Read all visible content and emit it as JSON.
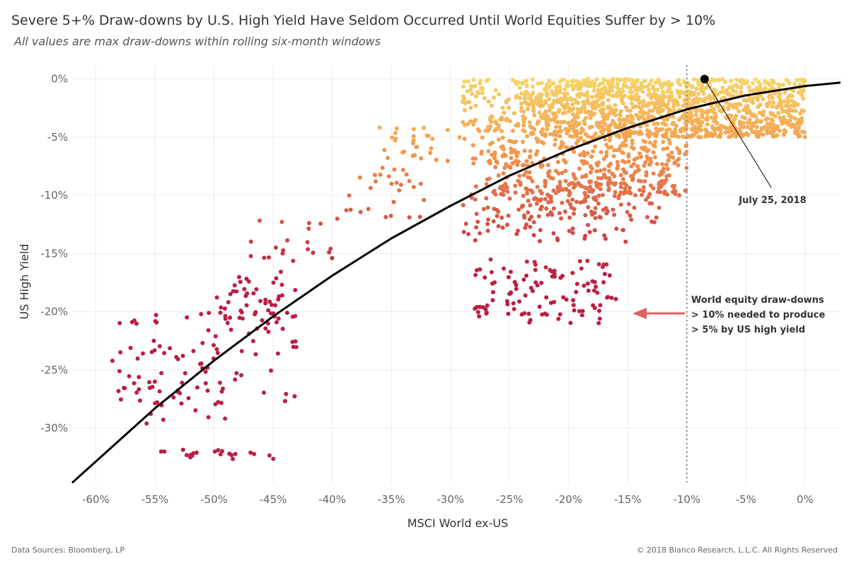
{
  "header": {
    "title": "Severe 5+% Draw-downs by U.S. High Yield Have Seldom Occurred Until World Equities Suffer by > 10%",
    "subtitle": "All values are max draw-downs within rolling six-month windows"
  },
  "footer": {
    "source": "Data Sources: Bloomberg, LP",
    "copyright": "© 2018 Bianco Research, L.L.C. All Rights Reserved"
  },
  "colors": {
    "high": "#f6d56a",
    "mid": "#f59a4c",
    "low": "#bb1e42",
    "fit_line": "#000000",
    "arrow": "#e06060",
    "marker": "#000000"
  },
  "chart_data": {
    "type": "scatter",
    "title": "Severe 5+% Draw-downs by U.S. High Yield Have Seldom Occurred Until World Equities Suffer by > 10%",
    "subtitle": "All values are max draw-downs within rolling six-month windows",
    "xlabel": "MSCI World ex-US",
    "ylabel": "US High Yield",
    "xlim": [
      -62,
      3
    ],
    "ylim": [
      -34.8,
      1.2
    ],
    "x_ticks": [
      -60,
      -55,
      -50,
      -45,
      -40,
      -35,
      -30,
      -25,
      -20,
      -15,
      -10,
      -5,
      0
    ],
    "x_tick_labels": [
      "-60%",
      "-55%",
      "-50%",
      "-45%",
      "-40%",
      "-35%",
      "-30%",
      "-25%",
      "-20%",
      "-15%",
      "-10%",
      "-5%",
      "0%"
    ],
    "y_ticks": [
      0,
      -5,
      -10,
      -15,
      -20,
      -25,
      -30
    ],
    "y_tick_labels": [
      "0%",
      "-5%",
      "-10%",
      "-15%",
      "-20%",
      "-25%",
      "-30%"
    ],
    "grid": true,
    "color_scale": "yellow (near 0%) to orange to dark red (US High Yield draw-down)",
    "fit_curve": {
      "type": "quadratic",
      "x": [
        -62,
        -55,
        -50,
        -45,
        -40,
        -35,
        -30,
        -25,
        -20,
        -15,
        -10,
        -5,
        0,
        3
      ],
      "y": [
        -34.7,
        -28.3,
        -24.2,
        -20.4,
        -16.9,
        -13.7,
        -10.9,
        -8.3,
        -6.1,
        -4.2,
        -2.6,
        -1.4,
        -0.6,
        -0.3
      ]
    },
    "reference_line": {
      "x": -10,
      "style": "dotted"
    },
    "marker": {
      "x": -8.5,
      "y": 0,
      "label": "July 25, 2018"
    },
    "annotation": {
      "lines": [
        "World equity draw-downs",
        "> 10% needed to produce",
        "> 5% by US high yield"
      ]
    },
    "clusters": [
      {
        "name": "near zero band",
        "x_range": [
          -24,
          0
        ],
        "y_range": [
          -5,
          0
        ],
        "count": 1300
      },
      {
        "name": "near zero band upper",
        "x_range": [
          -29,
          -24
        ],
        "y_range": [
          -4.5,
          0
        ],
        "count": 90
      },
      {
        "name": "moderate",
        "x_range": [
          -27,
          -10
        ],
        "y_range": [
          -10,
          -5
        ],
        "count": 380
      },
      {
        "name": "moderate wide",
        "x_range": [
          -36,
          -27
        ],
        "y_range": [
          -8,
          -4
        ],
        "count": 40
      },
      {
        "name": "mid",
        "x_range": [
          -29,
          -12
        ],
        "y_range": [
          -14,
          -9
        ],
        "count": 130
      },
      {
        "name": "deeper mid",
        "x_range": [
          -24,
          -17
        ],
        "y_range": [
          -12,
          -10
        ],
        "count": 40
      },
      {
        "name": "left upper",
        "x_range": [
          -39,
          -32
        ],
        "y_range": [
          -12,
          -8
        ],
        "count": 25
      },
      {
        "name": "left band",
        "x_range": [
          -47,
          -39
        ],
        "y_range": [
          -17,
          -12
        ],
        "count": 22
      },
      {
        "name": "crisis mid-right",
        "x_range": [
          -28,
          -16
        ],
        "y_range": [
          -21,
          -15.5
        ],
        "count": 110
      },
      {
        "name": "crisis left upper",
        "x_range": [
          -50,
          -43
        ],
        "y_range": [
          -21,
          -17
        ],
        "count": 45
      },
      {
        "name": "crisis left",
        "x_range": [
          -59,
          -43
        ],
        "y_range": [
          -28,
          -20
        ],
        "count": 90
      },
      {
        "name": "crisis far left",
        "x_range": [
          -59,
          -49
        ],
        "y_range": [
          -30,
          -26
        ],
        "count": 20
      },
      {
        "name": "crisis bottom",
        "x_range": [
          -55,
          -44
        ],
        "y_range": [
          -32.8,
          -31.8
        ],
        "count": 22
      }
    ]
  }
}
